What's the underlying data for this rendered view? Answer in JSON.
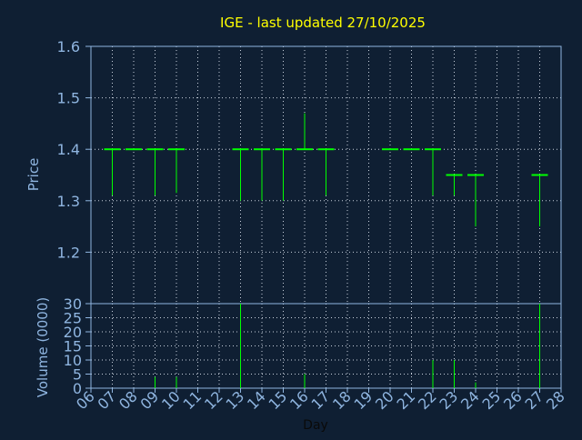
{
  "chart_data": [
    {
      "type": "ohlc",
      "title": "IGE - last updated 27/10/2025",
      "ylabel": "Price",
      "ylim": [
        1.1,
        1.6
      ],
      "yticks": [
        "1.2",
        "1.3",
        "1.4",
        "1.5",
        "1.6"
      ],
      "grid": true,
      "colors": {
        "background": "#0f1f33",
        "axis": "#8fb5e0",
        "grid": "#c8d0dc",
        "candle": "#00ff00",
        "title": "#ffff00"
      },
      "days": [
        7,
        8,
        9,
        10,
        13,
        14,
        15,
        16,
        17,
        20,
        21,
        22,
        23,
        24,
        27
      ],
      "open": [
        1.4,
        1.4,
        1.4,
        1.4,
        1.4,
        1.4,
        1.4,
        1.4,
        1.4,
        1.4,
        1.4,
        1.4,
        1.35,
        1.35,
        1.35
      ],
      "high": [
        1.4,
        1.4,
        1.4,
        1.4,
        1.4,
        1.4,
        1.4,
        1.47,
        1.4,
        1.4,
        1.4,
        1.4,
        1.35,
        1.35,
        1.35
      ],
      "low": [
        1.31,
        1.4,
        1.31,
        1.315,
        1.3,
        1.3,
        1.3,
        1.4,
        1.31,
        1.4,
        1.4,
        1.31,
        1.31,
        1.25,
        1.25
      ],
      "close": [
        1.4,
        1.4,
        1.4,
        1.4,
        1.4,
        1.4,
        1.4,
        1.4,
        1.4,
        1.4,
        1.4,
        1.4,
        1.35,
        1.35,
        1.35
      ]
    },
    {
      "type": "bar",
      "xlabel": "Day",
      "ylabel": "Volume (0000)",
      "ylim": [
        0,
        30
      ],
      "yticks": [
        "0",
        "5",
        "10",
        "15",
        "20",
        "25",
        "30"
      ],
      "xticks": [
        "06",
        "07",
        "08",
        "09",
        "10",
        "11",
        "12",
        "13",
        "14",
        "15",
        "16",
        "17",
        "18",
        "19",
        "20",
        "21",
        "22",
        "23",
        "24",
        "25",
        "26",
        "27",
        "28"
      ],
      "days": [
        9,
        10,
        13,
        16,
        22,
        23,
        24,
        27
      ],
      "values": [
        4,
        4,
        30,
        5,
        10,
        10,
        2,
        30
      ]
    }
  ]
}
